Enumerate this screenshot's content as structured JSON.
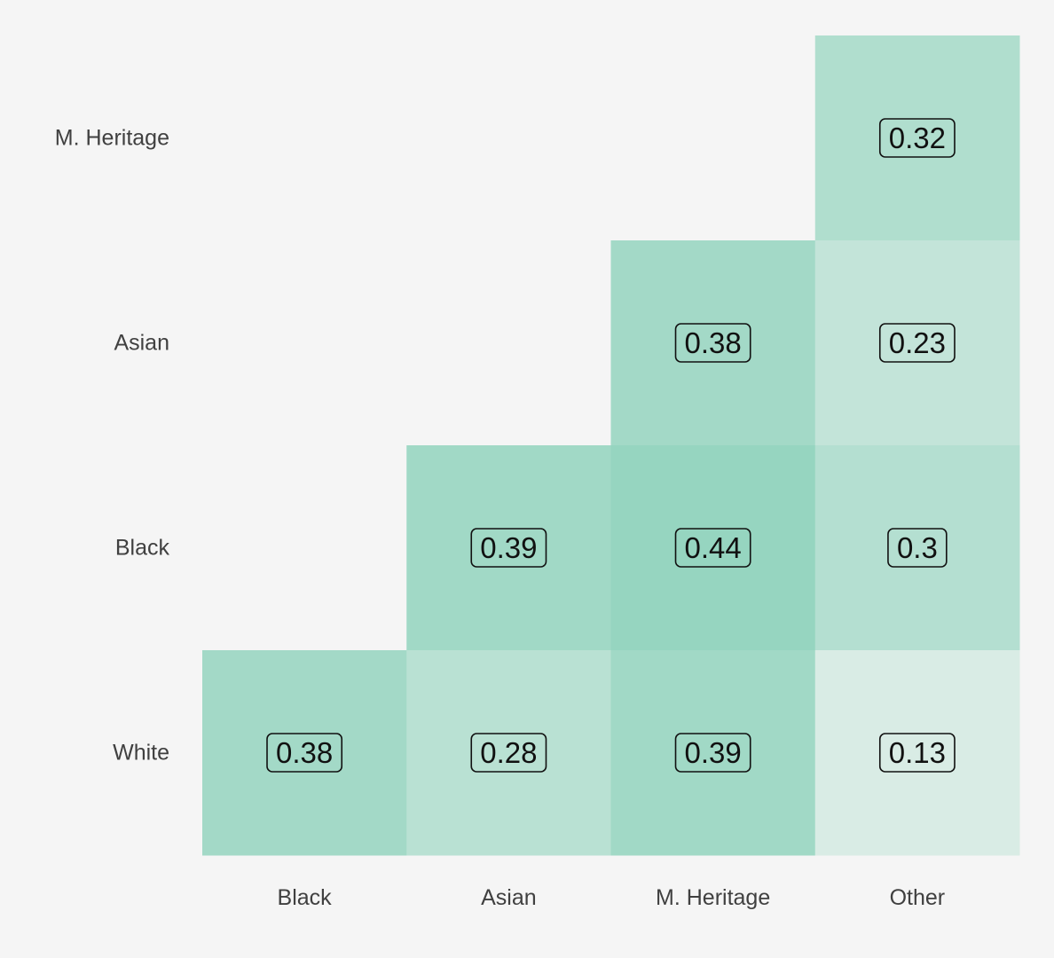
{
  "chart_data": {
    "type": "heatmap",
    "title": "",
    "xlabel": "",
    "ylabel": "",
    "x_categories": [
      "Black",
      "Asian",
      "M. Heritage",
      "Other"
    ],
    "y_categories": [
      "M. Heritage",
      "Asian",
      "Black",
      "White"
    ],
    "cells": [
      {
        "row": "M. Heritage",
        "col": "Other",
        "value": 0.32,
        "label": "0.32"
      },
      {
        "row": "Asian",
        "col": "M. Heritage",
        "value": 0.38,
        "label": "0.38"
      },
      {
        "row": "Asian",
        "col": "Other",
        "value": 0.23,
        "label": "0.23"
      },
      {
        "row": "Black",
        "col": "Asian",
        "value": 0.39,
        "label": "0.39"
      },
      {
        "row": "Black",
        "col": "M. Heritage",
        "value": 0.44,
        "label": "0.44"
      },
      {
        "row": "Black",
        "col": "Other",
        "value": 0.3,
        "label": "0.3"
      },
      {
        "row": "White",
        "col": "Black",
        "value": 0.38,
        "label": "0.38"
      },
      {
        "row": "White",
        "col": "Asian",
        "value": 0.28,
        "label": "0.28"
      },
      {
        "row": "White",
        "col": "M. Heritage",
        "value": 0.39,
        "label": "0.39"
      },
      {
        "row": "White",
        "col": "Other",
        "value": 0.13,
        "label": "0.13"
      }
    ],
    "color_range": [
      0,
      0.44
    ],
    "colors": {
      "low": "#f5f5f5",
      "high": "#96d5c0",
      "background": "#f5f5f5"
    },
    "grid": false,
    "legend": "none"
  }
}
